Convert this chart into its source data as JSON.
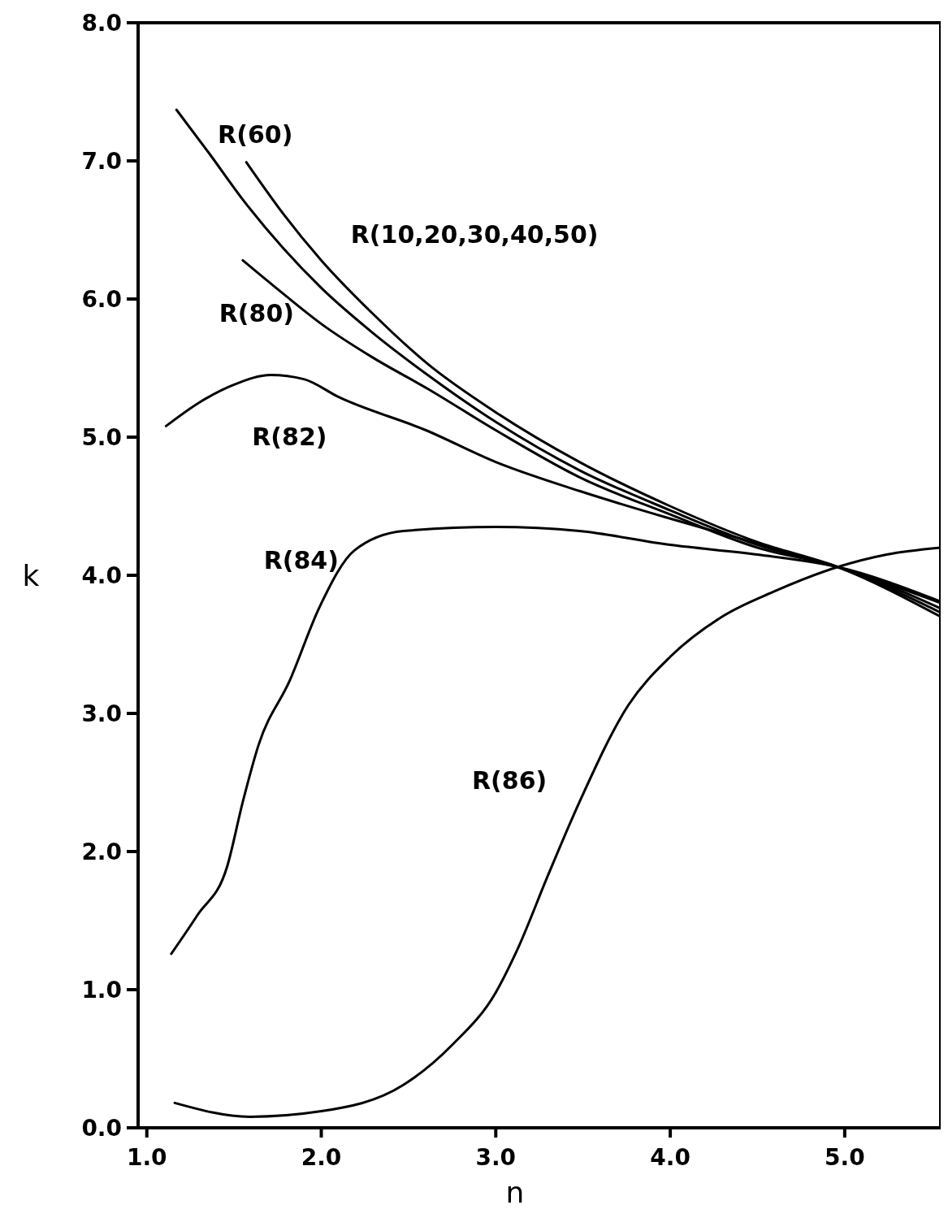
{
  "chart_data": {
    "type": "line",
    "xlabel": "n",
    "ylabel": "k",
    "xlim": [
      0.95,
      5.55
    ],
    "ylim": [
      0,
      8
    ],
    "xticks": [
      {
        "value": 1,
        "label": "1.0"
      },
      {
        "value": 2,
        "label": "2.0"
      },
      {
        "value": 3,
        "label": "3.0"
      },
      {
        "value": 4,
        "label": "4.0"
      },
      {
        "value": 5,
        "label": "5.0"
      }
    ],
    "yticks": [
      {
        "value": 0,
        "label": "0.0"
      },
      {
        "value": 1,
        "label": "1.0"
      },
      {
        "value": 2,
        "label": "2.0"
      },
      {
        "value": 3,
        "label": "3.0"
      },
      {
        "value": 4,
        "label": "4.0"
      },
      {
        "value": 5,
        "label": "5.0"
      },
      {
        "value": 6,
        "label": "6.0"
      },
      {
        "value": 7,
        "label": "7.0"
      },
      {
        "value": 8,
        "label": "8.0"
      }
    ],
    "grid": false,
    "series": [
      {
        "name": "R(60)",
        "color": "#000000",
        "x": [
          1.17,
          1.36,
          1.55,
          1.78,
          2.0,
          2.29,
          2.61,
          3.0,
          3.48,
          4.0,
          4.5,
          4.96,
          5.55
        ],
        "values": [
          7.37,
          7.05,
          6.72,
          6.37,
          6.08,
          5.76,
          5.45,
          5.11,
          4.76,
          4.47,
          4.22,
          4.06,
          3.73
        ]
      },
      {
        "name": "R(10,20,30,40,50)",
        "color": "#000000",
        "x": [
          1.57,
          1.78,
          2.0,
          2.29,
          2.61,
          3.0,
          3.48,
          4.0,
          4.5,
          4.96,
          5.55
        ],
        "values": [
          6.99,
          6.62,
          6.28,
          5.9,
          5.53,
          5.18,
          4.82,
          4.5,
          4.24,
          4.06,
          3.7
        ]
      },
      {
        "name": "R(80)",
        "color": "#000000",
        "x": [
          1.55,
          1.78,
          2.0,
          2.29,
          2.61,
          3.0,
          3.48,
          4.0,
          4.5,
          4.96,
          5.55
        ],
        "values": [
          6.28,
          6.04,
          5.82,
          5.58,
          5.35,
          5.05,
          4.71,
          4.44,
          4.2,
          4.06,
          3.76
        ]
      },
      {
        "name": "R(82)",
        "color": "#000000",
        "x": [
          1.11,
          1.3,
          1.5,
          1.71,
          1.9,
          2.1,
          2.6,
          3.0,
          3.48,
          4.0,
          4.5,
          4.96,
          5.55
        ],
        "values": [
          5.08,
          5.25,
          5.38,
          5.45,
          5.42,
          5.29,
          5.05,
          4.82,
          4.61,
          4.41,
          4.23,
          4.06,
          3.8
        ]
      },
      {
        "name": "R(84)",
        "color": "#000000",
        "x": [
          1.14,
          1.29,
          1.46,
          1.55,
          1.64,
          1.82,
          1.99,
          2.19,
          2.47,
          3.0,
          3.48,
          4.0,
          4.5,
          4.96,
          5.55
        ],
        "values": [
          1.26,
          1.54,
          1.89,
          2.36,
          2.77,
          3.24,
          3.77,
          4.18,
          4.32,
          4.35,
          4.32,
          4.22,
          4.15,
          4.06,
          3.81
        ]
      },
      {
        "name": "R(86)",
        "color": "#000000",
        "x": [
          1.16,
          1.59,
          2.0,
          2.47,
          2.75,
          3.0,
          3.12,
          3.3,
          3.48,
          3.76,
          4.0,
          4.31,
          4.59,
          4.96,
          5.24,
          5.55
        ],
        "values": [
          0.18,
          0.08,
          0.12,
          0.31,
          0.6,
          0.98,
          1.28,
          1.83,
          2.36,
          3.06,
          3.41,
          3.71,
          3.88,
          4.06,
          4.15,
          4.2
        ]
      }
    ]
  }
}
